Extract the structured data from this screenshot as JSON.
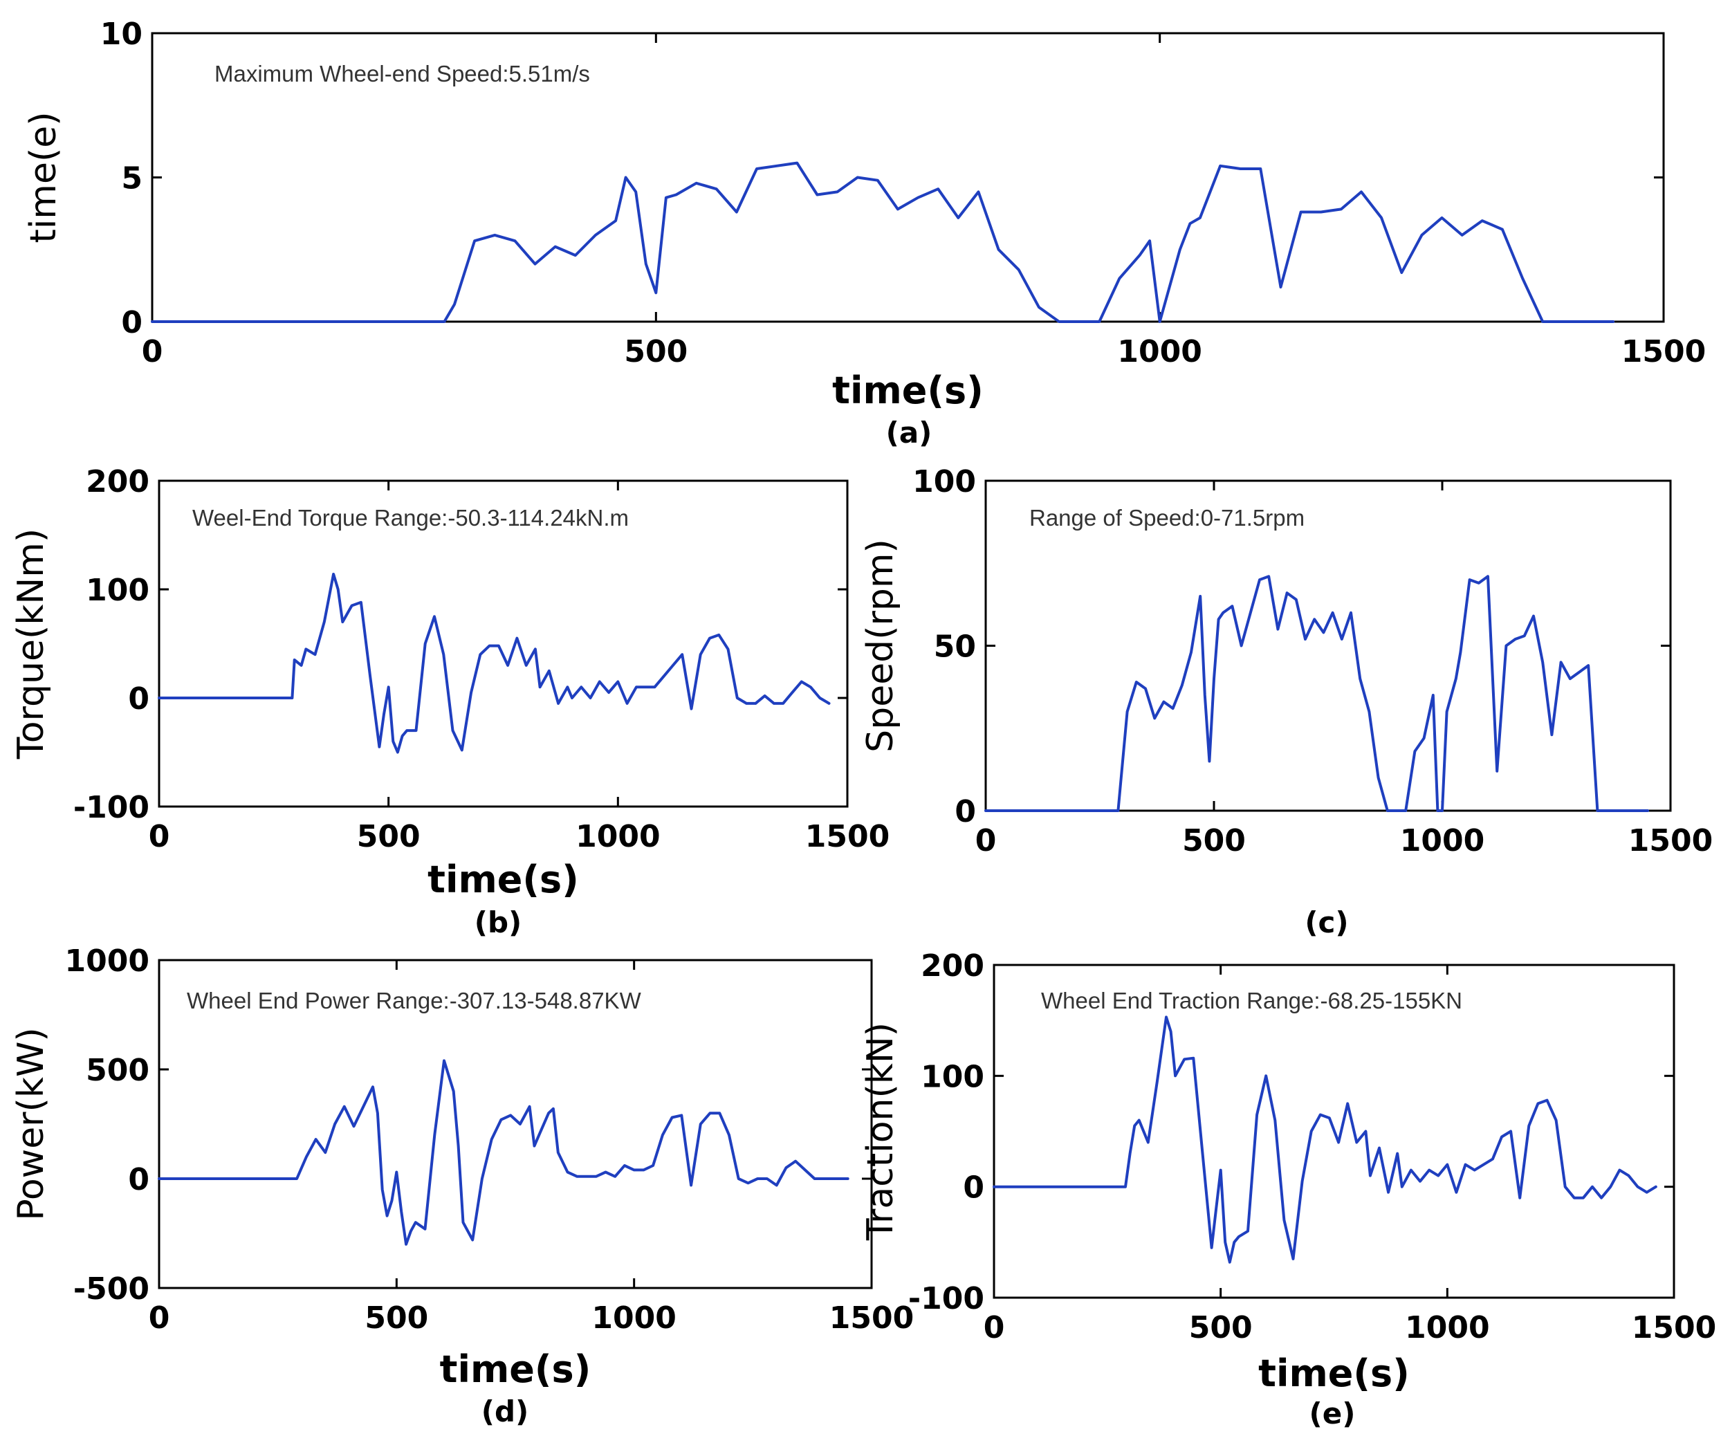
{
  "chart_data": [
    {
      "id": "a",
      "type": "line",
      "caption": "(a)",
      "annotation": "Maximum Wheel-end Speed:5.51m/s",
      "xlabel": "time(s)",
      "ylabel": "time(e)",
      "xlim": [
        0,
        1500
      ],
      "ylim": [
        0,
        10
      ],
      "xticks": [
        0,
        500,
        1000,
        1500
      ],
      "yticks": [
        0,
        5,
        10
      ],
      "color": "#1f3fbf",
      "x": [
        0,
        290,
        300,
        320,
        340,
        360,
        380,
        400,
        420,
        440,
        460,
        470,
        480,
        490,
        500,
        510,
        520,
        540,
        560,
        580,
        600,
        620,
        640,
        660,
        680,
        700,
        720,
        740,
        760,
        780,
        800,
        820,
        840,
        860,
        880,
        900,
        920,
        940,
        960,
        980,
        990,
        1000,
        1020,
        1030,
        1040,
        1060,
        1080,
        1100,
        1120,
        1140,
        1160,
        1180,
        1200,
        1220,
        1240,
        1260,
        1280,
        1300,
        1320,
        1340,
        1360,
        1380,
        1400,
        1420,
        1440,
        1450
      ],
      "values": [
        0,
        0,
        0.6,
        2.8,
        3.0,
        2.8,
        2.0,
        2.6,
        2.3,
        3.0,
        3.5,
        5.0,
        4.5,
        2.0,
        1.0,
        4.3,
        4.4,
        4.8,
        4.6,
        3.8,
        5.3,
        5.4,
        5.5,
        4.4,
        4.5,
        5.0,
        4.9,
        3.9,
        4.3,
        4.6,
        3.6,
        4.5,
        2.5,
        1.8,
        0.5,
        0,
        0,
        0,
        1.5,
        2.3,
        2.8,
        0,
        2.5,
        3.4,
        3.6,
        5.4,
        5.3,
        5.3,
        1.2,
        3.8,
        3.8,
        3.9,
        4.5,
        3.6,
        1.7,
        3.0,
        3.6,
        3.0,
        3.5,
        3.2,
        1.5,
        0,
        0,
        0,
        0,
        0
      ]
    },
    {
      "id": "b",
      "type": "line",
      "caption": "(b)",
      "annotation": "Weel-End Torque Range:-50.3-114.24kN.m",
      "xlabel": "time(s)",
      "ylabel": "Torque(kNm)",
      "xlim": [
        0,
        1500
      ],
      "ylim": [
        -100,
        200
      ],
      "xticks": [
        0,
        500,
        1000,
        1500
      ],
      "yticks": [
        -100,
        0,
        100,
        200
      ],
      "color": "#1f3fbf",
      "x": [
        0,
        290,
        295,
        310,
        320,
        340,
        360,
        380,
        390,
        400,
        420,
        440,
        460,
        480,
        490,
        500,
        510,
        520,
        530,
        540,
        560,
        580,
        600,
        620,
        640,
        660,
        680,
        700,
        720,
        740,
        760,
        780,
        800,
        820,
        830,
        850,
        870,
        890,
        900,
        920,
        940,
        960,
        980,
        1000,
        1020,
        1040,
        1060,
        1080,
        1100,
        1120,
        1140,
        1160,
        1180,
        1200,
        1220,
        1240,
        1260,
        1280,
        1300,
        1320,
        1340,
        1360,
        1380,
        1400,
        1420,
        1440,
        1460
      ],
      "values": [
        0,
        0,
        35,
        30,
        45,
        40,
        70,
        114,
        100,
        70,
        85,
        88,
        20,
        -45,
        -15,
        10,
        -40,
        -50,
        -35,
        -30,
        -30,
        50,
        75,
        40,
        -30,
        -48,
        5,
        40,
        48,
        48,
        30,
        55,
        30,
        45,
        10,
        25,
        -5,
        10,
        0,
        10,
        0,
        15,
        5,
        15,
        -5,
        10,
        10,
        10,
        20,
        30,
        40,
        -10,
        40,
        55,
        58,
        45,
        0,
        -5,
        -5,
        2,
        -5,
        -5,
        5,
        15,
        10,
        0,
        -5
      ]
    },
    {
      "id": "c",
      "type": "line",
      "caption": "(c)",
      "annotation": "Range of Speed:0-71.5rpm",
      "xlabel": "",
      "ylabel": "Speed(rpm)",
      "xlim": [
        0,
        1500
      ],
      "ylim": [
        0,
        100
      ],
      "xticks": [
        0,
        500,
        1000,
        1500
      ],
      "yticks": [
        0,
        50,
        100
      ],
      "color": "#1f3fbf",
      "x": [
        0,
        290,
        310,
        330,
        350,
        370,
        390,
        410,
        430,
        450,
        470,
        480,
        490,
        500,
        510,
        520,
        540,
        560,
        580,
        600,
        620,
        640,
        660,
        680,
        700,
        720,
        740,
        760,
        780,
        800,
        820,
        840,
        860,
        880,
        900,
        920,
        940,
        960,
        980,
        990,
        1000,
        1010,
        1020,
        1030,
        1040,
        1060,
        1080,
        1100,
        1120,
        1140,
        1160,
        1180,
        1200,
        1220,
        1240,
        1260,
        1280,
        1300,
        1320,
        1340,
        1360,
        1380,
        1400,
        1420,
        1440,
        1450
      ],
      "values": [
        0,
        0,
        30,
        39,
        37,
        28,
        33,
        31,
        38,
        48,
        65,
        35,
        15,
        40,
        58,
        60,
        62,
        50,
        60,
        70,
        71,
        55,
        66,
        64,
        52,
        58,
        54,
        60,
        52,
        60,
        40,
        30,
        10,
        0,
        0,
        0,
        18,
        22,
        35,
        0,
        0,
        30,
        35,
        40,
        48,
        70,
        69,
        71,
        12,
        50,
        52,
        53,
        59,
        45,
        23,
        45,
        40,
        42,
        44,
        0,
        0,
        0,
        0,
        0,
        0,
        0
      ]
    },
    {
      "id": "d",
      "type": "line",
      "caption": "(d)",
      "annotation": "Wheel End Power Range:-307.13-548.87KW",
      "xlabel": "time(s)",
      "ylabel": "Power(kW)",
      "xlim": [
        0,
        1500
      ],
      "ylim": [
        -500,
        1000
      ],
      "xticks": [
        0,
        500,
        1000,
        1500
      ],
      "yticks": [
        -500,
        0,
        500,
        1000
      ],
      "color": "#1f3fbf",
      "x": [
        0,
        290,
        310,
        330,
        350,
        370,
        390,
        410,
        430,
        450,
        460,
        470,
        480,
        490,
        500,
        510,
        520,
        530,
        540,
        560,
        580,
        600,
        620,
        630,
        640,
        660,
        680,
        700,
        720,
        740,
        760,
        780,
        790,
        800,
        820,
        830,
        840,
        860,
        880,
        900,
        920,
        940,
        960,
        980,
        1000,
        1020,
        1040,
        1060,
        1080,
        1100,
        1120,
        1140,
        1160,
        1180,
        1200,
        1220,
        1240,
        1260,
        1280,
        1300,
        1320,
        1340,
        1360,
        1380,
        1400,
        1420,
        1440,
        1450
      ],
      "values": [
        0,
        0,
        100,
        180,
        120,
        250,
        330,
        240,
        330,
        420,
        300,
        -50,
        -170,
        -100,
        30,
        -150,
        -300,
        -240,
        -200,
        -230,
        200,
        540,
        400,
        150,
        -200,
        -280,
        0,
        180,
        270,
        290,
        250,
        330,
        150,
        200,
        300,
        320,
        120,
        30,
        10,
        10,
        10,
        30,
        10,
        60,
        40,
        40,
        60,
        200,
        280,
        290,
        -30,
        250,
        300,
        300,
        200,
        0,
        -20,
        0,
        0,
        -30,
        50,
        80,
        40,
        0,
        0,
        0,
        0,
        0
      ]
    },
    {
      "id": "e",
      "type": "line",
      "caption": "(e)",
      "annotation": "Wheel End Traction Range:-68.25-155KN",
      "xlabel": "time(s)",
      "ylabel": "Traction(kN)",
      "xlim": [
        0,
        1500
      ],
      "ylim": [
        -100,
        200
      ],
      "xticks": [
        0,
        500,
        1000,
        1500
      ],
      "yticks": [
        -100,
        0,
        100,
        200
      ],
      "color": "#1f3fbf",
      "x": [
        0,
        290,
        300,
        310,
        320,
        340,
        360,
        380,
        390,
        400,
        420,
        440,
        460,
        480,
        490,
        500,
        510,
        520,
        530,
        540,
        560,
        580,
        600,
        620,
        640,
        660,
        680,
        700,
        720,
        740,
        760,
        780,
        800,
        820,
        830,
        850,
        870,
        890,
        900,
        920,
        940,
        960,
        980,
        1000,
        1020,
        1040,
        1060,
        1080,
        1100,
        1120,
        1140,
        1160,
        1180,
        1200,
        1220,
        1240,
        1260,
        1280,
        1300,
        1320,
        1340,
        1360,
        1380,
        1400,
        1420,
        1440,
        1460
      ],
      "values": [
        0,
        0,
        30,
        55,
        60,
        40,
        95,
        153,
        140,
        100,
        115,
        116,
        30,
        -55,
        -20,
        15,
        -50,
        -68,
        -50,
        -45,
        -40,
        65,
        100,
        60,
        -30,
        -65,
        5,
        50,
        65,
        62,
        40,
        75,
        40,
        50,
        10,
        35,
        -5,
        30,
        0,
        15,
        5,
        15,
        10,
        20,
        -5,
        20,
        15,
        20,
        25,
        45,
        50,
        -10,
        55,
        75,
        78,
        60,
        0,
        -10,
        -10,
        0,
        -10,
        0,
        15,
        10,
        0,
        -5,
        0
      ]
    }
  ]
}
